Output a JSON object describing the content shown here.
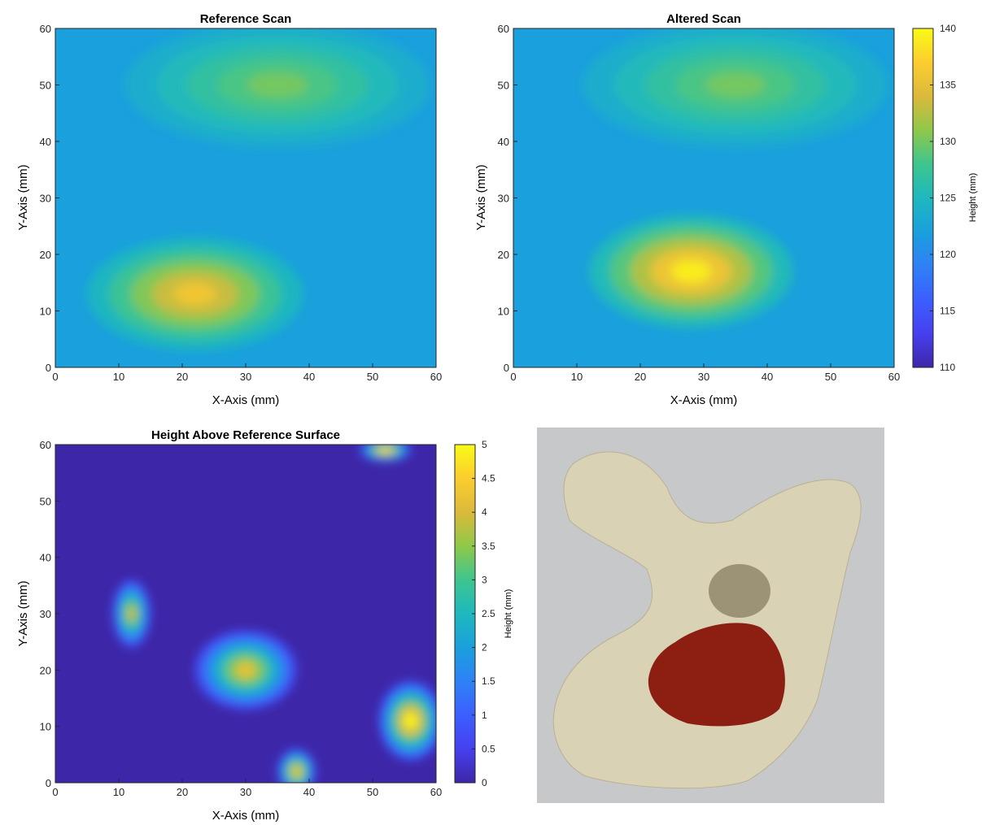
{
  "figure": {
    "photo": {
      "description_icon": "bone-model-photo-icon",
      "colors": {
        "background": "#c7c8c9",
        "bone": "#d9d2b4",
        "lesion": "#8c1f12",
        "plug": "#9c9275"
      }
    }
  },
  "chart_data": [
    {
      "type": "heatmap",
      "title": "Reference Scan",
      "xlabel": "X-Axis (mm)",
      "ylabel": "Y-Axis (mm)",
      "xlim": [
        0,
        60
      ],
      "ylim": [
        0,
        60
      ],
      "xticks": [
        "0",
        "10",
        "20",
        "30",
        "40",
        "50",
        "60"
      ],
      "yticks": [
        "0",
        "10",
        "20",
        "30",
        "40",
        "50",
        "60"
      ],
      "colormap": "parula",
      "clim": [
        110,
        140
      ],
      "features": [
        {
          "x": 22,
          "y": 13,
          "value": 136,
          "rx": 17,
          "ry": 10
        },
        {
          "x": 35,
          "y": 50,
          "value": 130,
          "rx": 24,
          "ry": 11
        }
      ],
      "background_value": 122
    },
    {
      "type": "heatmap",
      "title": "Altered Scan",
      "xlabel": "X-Axis (mm)",
      "ylabel": "Y-Axis (mm)",
      "xlim": [
        0,
        60
      ],
      "ylim": [
        0,
        60
      ],
      "xticks": [
        "0",
        "10",
        "20",
        "30",
        "40",
        "50",
        "60"
      ],
      "yticks": [
        "0",
        "10",
        "20",
        "30",
        "40",
        "50",
        "60"
      ],
      "colormap": "parula",
      "clim": [
        110,
        140
      ],
      "features": [
        {
          "x": 28,
          "y": 17,
          "value": 139,
          "rx": 16,
          "ry": 10
        },
        {
          "x": 35,
          "y": 50,
          "value": 130,
          "rx": 24,
          "ry": 11
        }
      ],
      "background_value": 122,
      "colorbar": {
        "label": "Height (mm)",
        "ticks": [
          "110",
          "115",
          "120",
          "125",
          "130",
          "135",
          "140"
        ]
      }
    },
    {
      "type": "heatmap",
      "title": "Height Above Reference Surface",
      "xlabel": "X-Axis (mm)",
      "ylabel": "Y-Axis (mm)",
      "xlim": [
        0,
        60
      ],
      "ylim": [
        0,
        60
      ],
      "xticks": [
        "0",
        "10",
        "20",
        "30",
        "40",
        "50",
        "60"
      ],
      "yticks": [
        "0",
        "10",
        "20",
        "30",
        "40",
        "50",
        "60"
      ],
      "colormap": "parula",
      "clim": [
        0,
        5
      ],
      "features": [
        {
          "x": 30,
          "y": 20,
          "value": 4.2,
          "rx": 8,
          "ry": 7
        },
        {
          "x": 12,
          "y": 30,
          "value": 4.0,
          "rx": 3,
          "ry": 6
        },
        {
          "x": 56,
          "y": 11,
          "value": 5.0,
          "rx": 5,
          "ry": 7
        },
        {
          "x": 52,
          "y": 59,
          "value": 5.0,
          "rx": 4,
          "ry": 2
        },
        {
          "x": 38,
          "y": 2,
          "value": 4.5,
          "rx": 3,
          "ry": 4
        }
      ],
      "background_value": 0,
      "colorbar": {
        "label": "Height (mm)",
        "ticks": [
          "0",
          "0.5",
          "1",
          "1.5",
          "2",
          "2.5",
          "3",
          "3.5",
          "4",
          "4.5",
          "5"
        ]
      }
    }
  ]
}
